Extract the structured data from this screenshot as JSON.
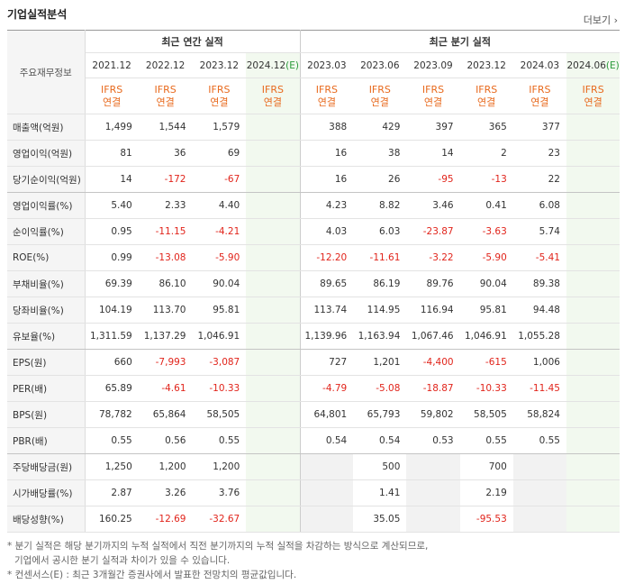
{
  "header": {
    "title": "기업실적분석",
    "more": "더보기"
  },
  "table": {
    "label_header": "주요재무정보",
    "groups": [
      "최근 연간 실적",
      "최근 분기 실적"
    ],
    "periods": [
      {
        "label": "2021.12"
      },
      {
        "label": "2022.12"
      },
      {
        "label": "2023.12"
      },
      {
        "label": "2024.12",
        "mark": "(E)"
      },
      {
        "label": "2023.03"
      },
      {
        "label": "2023.06"
      },
      {
        "label": "2023.09"
      },
      {
        "label": "2023.12"
      },
      {
        "label": "2024.03"
      },
      {
        "label": "2024.06",
        "mark": "(E)"
      }
    ],
    "basis": [
      [
        "IFRS",
        "연결"
      ],
      [
        "IFRS",
        "연결"
      ],
      [
        "IFRS",
        "연결"
      ],
      [
        "IFRS",
        "연결"
      ],
      [
        "IFRS",
        "연결"
      ],
      [
        "IFRS",
        "연결"
      ],
      [
        "IFRS",
        "연결"
      ],
      [
        "IFRS",
        "연결"
      ],
      [
        "IFRS",
        "연결"
      ],
      [
        "IFRS",
        "연결"
      ]
    ],
    "rows": [
      {
        "label": "매출액(억원)",
        "values": [
          "1,499",
          "1,544",
          "1,579",
          null,
          "388",
          "429",
          "397",
          "365",
          "377",
          null
        ]
      },
      {
        "label": "영업이익(억원)",
        "values": [
          "81",
          "36",
          "69",
          null,
          "16",
          "38",
          "14",
          "2",
          "23",
          null
        ]
      },
      {
        "label": "당기순이익(억원)",
        "values": [
          "14",
          "-172",
          "-67",
          null,
          "16",
          "26",
          "-95",
          "-13",
          "22",
          null
        ]
      },
      {
        "label": "영업이익률(%)",
        "values": [
          "5.40",
          "2.33",
          "4.40",
          null,
          "4.23",
          "8.82",
          "3.46",
          "0.41",
          "6.08",
          null
        ]
      },
      {
        "label": "순이익률(%)",
        "values": [
          "0.95",
          "-11.15",
          "-4.21",
          null,
          "4.03",
          "6.03",
          "-23.87",
          "-3.63",
          "5.74",
          null
        ]
      },
      {
        "label": "ROE(%)",
        "values": [
          "0.99",
          "-13.08",
          "-5.90",
          null,
          "-12.20",
          "-11.61",
          "-3.22",
          "-5.90",
          "-5.41",
          null
        ]
      },
      {
        "label": "부채비율(%)",
        "values": [
          "69.39",
          "86.10",
          "90.04",
          null,
          "89.65",
          "86.19",
          "89.76",
          "90.04",
          "89.38",
          null
        ]
      },
      {
        "label": "당좌비율(%)",
        "values": [
          "104.19",
          "113.70",
          "95.81",
          null,
          "113.74",
          "114.95",
          "116.94",
          "95.81",
          "94.48",
          null
        ]
      },
      {
        "label": "유보율(%)",
        "values": [
          "1,311.59",
          "1,137.29",
          "1,046.91",
          null,
          "1,139.96",
          "1,163.94",
          "1,067.46",
          "1,046.91",
          "1,055.28",
          null
        ]
      },
      {
        "label": "EPS(원)",
        "values": [
          "660",
          "-7,993",
          "-3,087",
          null,
          "727",
          "1,201",
          "-4,400",
          "-615",
          "1,006",
          null
        ]
      },
      {
        "label": "PER(배)",
        "values": [
          "65.89",
          "-4.61",
          "-10.33",
          null,
          "-4.79",
          "-5.08",
          "-18.87",
          "-10.33",
          "-11.45",
          null
        ]
      },
      {
        "label": "BPS(원)",
        "values": [
          "78,782",
          "65,864",
          "58,505",
          null,
          "64,801",
          "65,793",
          "59,802",
          "58,505",
          "58,824",
          null
        ]
      },
      {
        "label": "PBR(배)",
        "values": [
          "0.55",
          "0.56",
          "0.55",
          null,
          "0.54",
          "0.54",
          "0.53",
          "0.55",
          "0.55",
          null
        ]
      },
      {
        "label": "주당배당금(원)",
        "values": [
          "1,250",
          "1,200",
          "1,200",
          null,
          null,
          "500",
          null,
          "700",
          null,
          null
        ]
      },
      {
        "label": "시가배당률(%)",
        "values": [
          "2.87",
          "3.26",
          "3.76",
          null,
          null,
          "1.41",
          null,
          "2.19",
          null,
          null
        ]
      },
      {
        "label": "배당성향(%)",
        "values": [
          "160.25",
          "-12.69",
          "-32.67",
          null,
          null,
          "35.05",
          null,
          "-95.53",
          null,
          null
        ]
      }
    ]
  },
  "notes": [
    "* 분기 실적은 해당 분기까지의 누적 실적에서 직전 분기까지의 누적 실적을 차감하는 방식으로 계산되므로,",
    "기업에서 공시한 분기 실적과 차이가 있을 수 있습니다.",
    "* 컨센서스(E) : 최근 3개월간 증권사에서 발표한 전망치의 평균값입니다."
  ]
}
